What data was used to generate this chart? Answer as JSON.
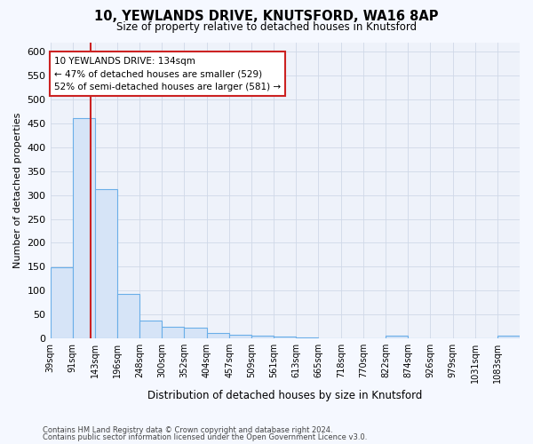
{
  "title1": "10, YEWLANDS DRIVE, KNUTSFORD, WA16 8AP",
  "title2": "Size of property relative to detached houses in Knutsford",
  "xlabel": "Distribution of detached houses by size in Knutsford",
  "ylabel": "Number of detached properties",
  "bin_labels": [
    "39sqm",
    "91sqm",
    "143sqm",
    "196sqm",
    "248sqm",
    "300sqm",
    "352sqm",
    "404sqm",
    "457sqm",
    "509sqm",
    "561sqm",
    "613sqm",
    "665sqm",
    "718sqm",
    "770sqm",
    "822sqm",
    "874sqm",
    "926sqm",
    "979sqm",
    "1031sqm",
    "1083sqm"
  ],
  "bar_heights": [
    148,
    462,
    313,
    93,
    37,
    25,
    22,
    12,
    8,
    5,
    3,
    2,
    1,
    1,
    0,
    5,
    0,
    0,
    0,
    0,
    5
  ],
  "bar_color": "#d6e4f7",
  "bar_edge_color": "#6aaee8",
  "property_size": 134,
  "property_label": "10 YEWLANDS DRIVE: 134sqm",
  "annotation_line1": "← 47% of detached houses are smaller (529)",
  "annotation_line2": "52% of semi-detached houses are larger (581) →",
  "vline_color": "#cc2222",
  "annotation_box_color": "#ffffff",
  "annotation_box_edge": "#cc2222",
  "bin_edges": [
    39,
    91,
    143,
    196,
    248,
    300,
    352,
    404,
    457,
    509,
    561,
    613,
    665,
    718,
    770,
    822,
    874,
    926,
    979,
    1031,
    1083
  ],
  "bin_width": 52,
  "ylim": [
    0,
    620
  ],
  "yticks": [
    0,
    50,
    100,
    150,
    200,
    250,
    300,
    350,
    400,
    450,
    500,
    550,
    600
  ],
  "footnote1": "Contains HM Land Registry data © Crown copyright and database right 2024.",
  "footnote2": "Contains public sector information licensed under the Open Government Licence v3.0.",
  "bg_color": "#eef2fa",
  "fig_bg_color": "#f5f8ff"
}
